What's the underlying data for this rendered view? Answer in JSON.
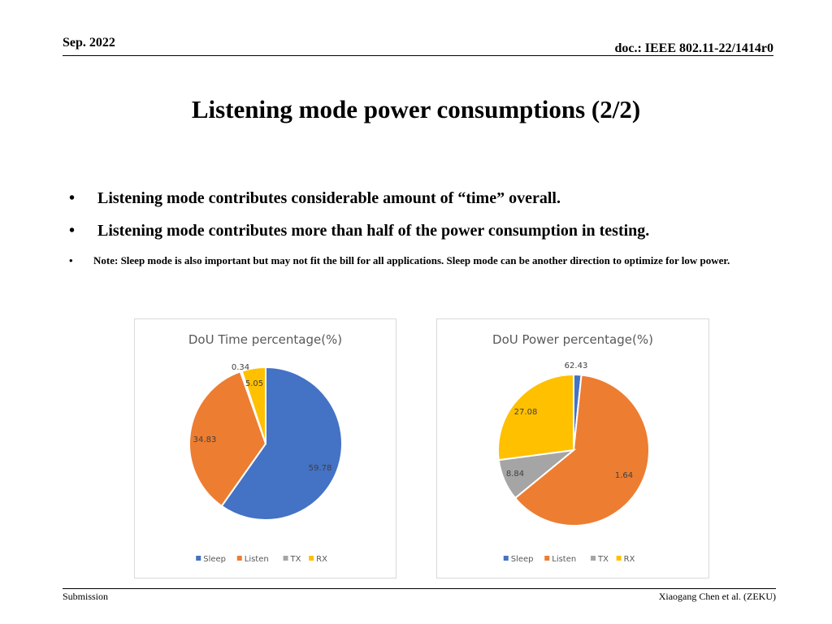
{
  "header": {
    "date": "Sep. 2022",
    "doc": "doc.: IEEE 802.11-22/1414r0"
  },
  "title": "Listening mode power consumptions (2/2)",
  "bullets": [
    {
      "mark": "•",
      "text": "Listening mode contributes considerable amount of “time” overall."
    },
    {
      "mark": "•",
      "text": "Listening mode contributes more than half of the power consumption in testing."
    },
    {
      "mark": "•",
      "text": "Note: Sleep mode is also important but may not fit the bill for all applications. Sleep mode can be another direction to optimize for low power."
    }
  ],
  "footer": {
    "left": "Submission",
    "right": "Xiaogang Chen et al. (ZEKU)"
  },
  "colors": {
    "Sleep": "#4472C4",
    "Listen": "#ED7D31",
    "TX": "#A5A5A5",
    "RX": "#FFC000"
  },
  "chart_data": [
    {
      "type": "pie",
      "title": "DoU Time percentage(%)",
      "categories": [
        "Sleep",
        "Listen",
        "TX",
        "RX"
      ],
      "values": [
        59.78,
        34.83,
        0.34,
        5.05
      ],
      "labels": [
        "59.78",
        "34.83",
        "0.34",
        "5.05"
      ],
      "legend": "bottom"
    },
    {
      "type": "pie",
      "title": "DoU Power percentage(%)",
      "categories": [
        "Sleep",
        "Listen",
        "TX",
        "RX"
      ],
      "values": [
        1.64,
        62.43,
        8.84,
        27.08
      ],
      "labels": [
        "1.64",
        "62.43",
        "8.84",
        "27.08"
      ],
      "legend": "bottom"
    }
  ]
}
